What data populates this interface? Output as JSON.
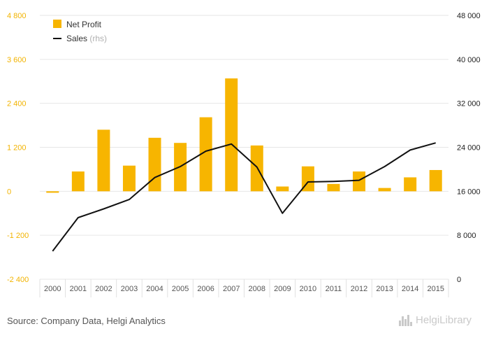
{
  "colors": {
    "bar": "#f7b500",
    "line": "#111111",
    "grid": "#e6e6e6",
    "left_axis": "#f2b300"
  },
  "legend": {
    "items": [
      {
        "label": "Net Profit",
        "suffix": "",
        "marker": "square",
        "color": "#f7b500"
      },
      {
        "label": "Sales",
        "suffix": " (rhs)",
        "marker": "line",
        "color": "#111111"
      }
    ]
  },
  "source": "Source: Company Data, Helgi Analytics",
  "brand": {
    "text": "HelgiLibrary",
    "icon": "city-skyline-icon"
  },
  "chart_data": {
    "type": "bar",
    "categories": [
      "2000",
      "2001",
      "2002",
      "2003",
      "2004",
      "2005",
      "2006",
      "2007",
      "2008",
      "2009",
      "2010",
      "2011",
      "2012",
      "2013",
      "2014",
      "2015"
    ],
    "series": [
      {
        "name": "Net Profit",
        "type": "bar",
        "axis": "left",
        "values": [
          -40,
          540,
          1680,
          700,
          1460,
          1320,
          2020,
          3080,
          1250,
          130,
          680,
          200,
          540,
          90,
          380,
          580
        ]
      },
      {
        "name": "Sales",
        "type": "line",
        "axis": "right",
        "values": [
          5100,
          11200,
          12800,
          14500,
          18500,
          20500,
          23300,
          24600,
          20400,
          12000,
          17700,
          17800,
          18000,
          20500,
          23500,
          24800
        ]
      }
    ],
    "y_left": {
      "min": -2400,
      "max": 4800,
      "ticks": [
        -2400,
        -1200,
        0,
        1200,
        2400,
        3600,
        4800
      ],
      "tick_labels": [
        "-2 400",
        "-1 200",
        "0",
        "1 200",
        "2 400",
        "3 600",
        "4 800"
      ]
    },
    "y_right": {
      "min": 0,
      "max": 48000,
      "ticks": [
        0,
        8000,
        16000,
        24000,
        32000,
        40000,
        48000
      ],
      "tick_labels": [
        "0",
        "8 000",
        "16 000",
        "24 000",
        "32 000",
        "40 000",
        "48 000"
      ]
    },
    "grid": true,
    "legend_position": "top-left"
  }
}
